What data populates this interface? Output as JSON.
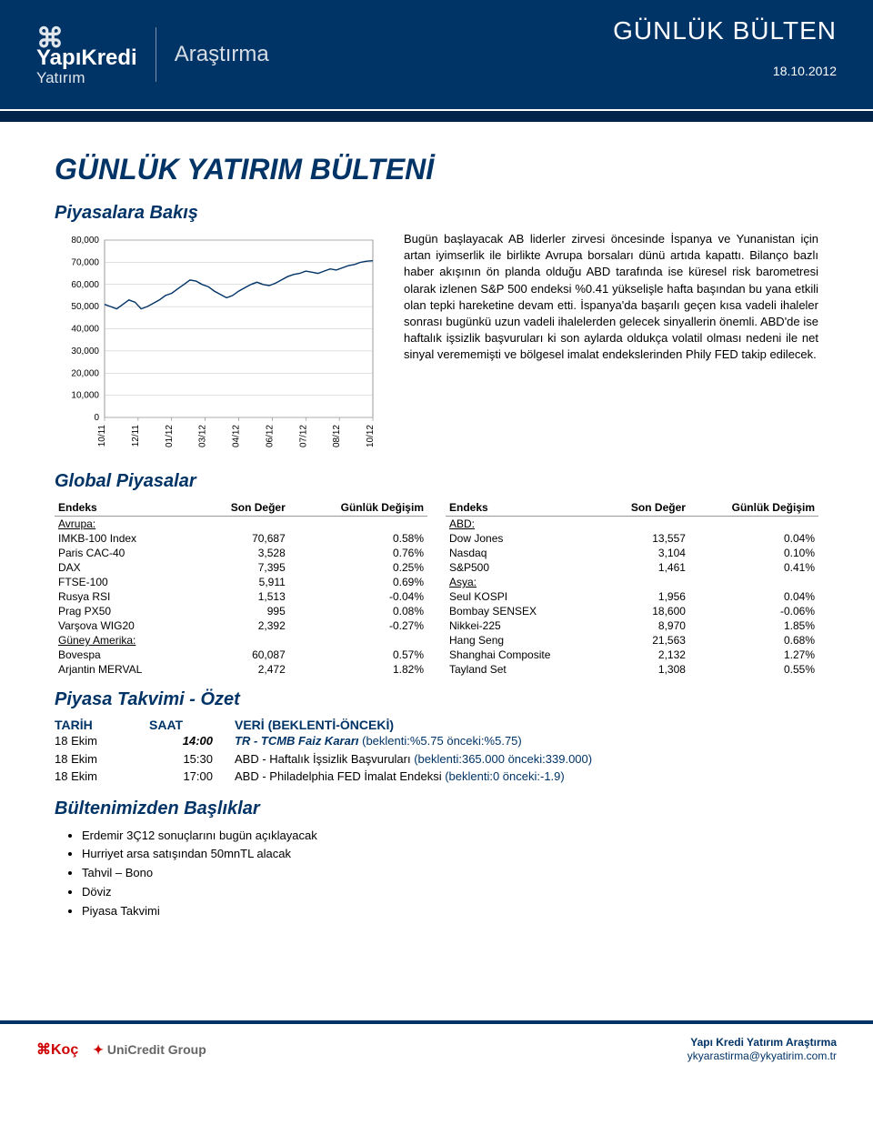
{
  "header": {
    "brand_top": "YapıKredi",
    "brand_sub": "Yatırım",
    "research_label": "Araştırma",
    "bulletin_label": "GÜNLÜK BÜLTEN",
    "date": "18.10.2012"
  },
  "page_title": "GÜNLÜK YATIRIM BÜLTENİ",
  "section_piyasalara_bakis": "Piyasalara Bakış",
  "body_text": "Bugün başlayacak AB liderler zirvesi öncesinde İspanya ve Yunanistan için artan iyimserlik ile birlikte Avrupa borsaları dünü artıda kapattı. Bilanço bazlı haber akışının ön planda olduğu ABD tarafında ise küresel risk barometresi olarak izlenen S&P 500 endeksi %0.41 yükselişle hafta başından bu yana etkili olan tepki hareketine devam etti. İspanya'da başarılı geçen kısa vadeli ihaleler sonrası bugünkü uzun vadeli ihalelerden gelecek sinyallerin önemli. ABD'de ise haftalık işsizlik başvuruları ki son aylarda oldukça volatil olması nedeni ile net sinyal verememişti ve bölgesel imalat endekslerinden Phily FED takip edilecek.",
  "section_global": "Global Piyasalar",
  "chart": {
    "type": "line",
    "ylim": [
      0,
      80000
    ],
    "ytick_step": 10000,
    "ylabels": [
      "0",
      "10,000",
      "20,000",
      "30,000",
      "40,000",
      "50,000",
      "60,000",
      "70,000",
      "80,000"
    ],
    "xlabels": [
      "10/11",
      "12/11",
      "01/12",
      "03/12",
      "04/12",
      "06/12",
      "07/12",
      "08/12",
      "10/12"
    ],
    "series_color": "#003366",
    "background_color": "#ffffff",
    "grid_color": "#bfbfbf",
    "line_width": 1.4,
    "values": [
      51000,
      50000,
      49000,
      51000,
      53000,
      52000,
      49000,
      50000,
      51500,
      53000,
      55000,
      56000,
      58000,
      60000,
      62000,
      61500,
      60000,
      59000,
      57000,
      55500,
      54000,
      55000,
      57000,
      58500,
      60000,
      61000,
      60000,
      59500,
      60500,
      62000,
      63500,
      64500,
      65000,
      66000,
      65500,
      65000,
      66000,
      67000,
      66500,
      67500,
      68500,
      69000,
      70000,
      70500,
      70687
    ]
  },
  "table_headers": {
    "col1": "Endeks",
    "col2": "Son Değer",
    "col3": "Günlük Değişim"
  },
  "left_table": [
    {
      "region": "Avrupa:"
    },
    {
      "name": "IMKB-100 Index",
      "val": "70,687",
      "chg": "0.58%"
    },
    {
      "name": "Paris CAC-40",
      "val": "3,528",
      "chg": "0.76%"
    },
    {
      "name": "DAX",
      "val": "7,395",
      "chg": "0.25%"
    },
    {
      "name": "FTSE-100",
      "val": "5,911",
      "chg": "0.69%"
    },
    {
      "name": "Rusya RSI",
      "val": "1,513",
      "chg": "-0.04%"
    },
    {
      "name": "Prag PX50",
      "val": "995",
      "chg": "0.08%"
    },
    {
      "name": "Varşova WIG20",
      "val": "2,392",
      "chg": "-0.27%"
    },
    {
      "region": "Güney Amerika:"
    },
    {
      "name": "Bovespa",
      "val": "60,087",
      "chg": "0.57%"
    },
    {
      "name": "Arjantin MERVAL",
      "val": "2,472",
      "chg": "1.82%"
    }
  ],
  "right_table": [
    {
      "region": "ABD:"
    },
    {
      "name": "Dow Jones",
      "val": "13,557",
      "chg": "0.04%"
    },
    {
      "name": "Nasdaq",
      "val": "3,104",
      "chg": "0.10%"
    },
    {
      "name": "S&P500",
      "val": "1,461",
      "chg": "0.41%"
    },
    {
      "region": "Asya:"
    },
    {
      "name": "Seul KOSPI",
      "val": "1,956",
      "chg": "0.04%"
    },
    {
      "name": "Bombay SENSEX",
      "val": "18,600",
      "chg": "-0.06%"
    },
    {
      "name": "Nikkei-225",
      "val": "8,970",
      "chg": "1.85%"
    },
    {
      "name": "Hang Seng",
      "val": "21,563",
      "chg": "0.68%"
    },
    {
      "name": "Shanghai Composite",
      "val": "2,132",
      "chg": "1.27%"
    },
    {
      "name": "Tayland Set",
      "val": "1,308",
      "chg": "0.55%"
    }
  ],
  "section_takvim": "Piyasa Takvimi - Özet",
  "cal_headers": {
    "c1": "TARİH",
    "c2": "SAAT",
    "c3": "VERİ (BEKLENTİ-ÖNCEKİ)"
  },
  "calendar": [
    {
      "date": "18 Ekim",
      "time": "14:00",
      "bold": true,
      "text": "TR - TCMB Faiz Kararı",
      "paren": "(beklenti:%5.75 önceki:%5.75)"
    },
    {
      "date": "18 Ekim",
      "time": "15:30",
      "bold": false,
      "text": "ABD - Haftalık İşsizlik Başvuruları",
      "paren": "(beklenti:365.000 önceki:339.000)"
    },
    {
      "date": "18 Ekim",
      "time": "17:00",
      "bold": false,
      "text": "ABD - Philadelphia FED İmalat Endeksi",
      "paren": "(beklenti:0 önceki:-1.9)"
    }
  ],
  "section_basliklar": "Bültenimizden Başlıklar",
  "bullets": [
    "Erdemir 3Ç12 sonuçlarını bugün açıklayacak",
    "Hurriyet arsa satışından 50mnTL alacak",
    "Tahvil – Bono",
    "Döviz",
    "Piyasa Takvimi"
  ],
  "footer": {
    "koc": "⌘Koç",
    "unicredit": "UniCredit Group",
    "line1": "Yapı Kredi Yatırım Araştırma",
    "line2": "ykyarastirma@ykyatirim.com.tr"
  }
}
